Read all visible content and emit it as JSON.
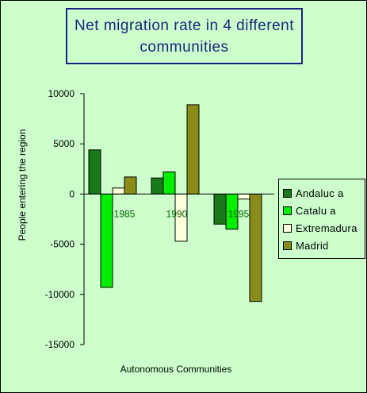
{
  "title": "Net migration rate in 4 different\ncommunities",
  "chart_data": {
    "type": "bar",
    "categories": [
      "1985",
      "1990",
      "1995"
    ],
    "series": [
      {
        "name": "Andaluc a",
        "color": "#1a7a1a",
        "values": [
          4400,
          1600,
          -3000
        ]
      },
      {
        "name": "Catalu a",
        "color": "#00ee00",
        "values": [
          -9300,
          2200,
          -3500
        ]
      },
      {
        "name": "Extremadura",
        "color": "#ffffdd",
        "values": [
          600,
          -4700,
          -500
        ]
      },
      {
        "name": "Madrid",
        "color": "#8b8b1a",
        "values": [
          1700,
          8900,
          -10700
        ]
      }
    ],
    "xlabel": "Autonomous Communities",
    "ylabel": "People entering the region",
    "ylim": [
      -15000,
      10000
    ],
    "yticks": [
      10000,
      5000,
      0,
      -5000,
      -10000,
      -15000
    ],
    "grid": false,
    "legend_position": "right"
  }
}
